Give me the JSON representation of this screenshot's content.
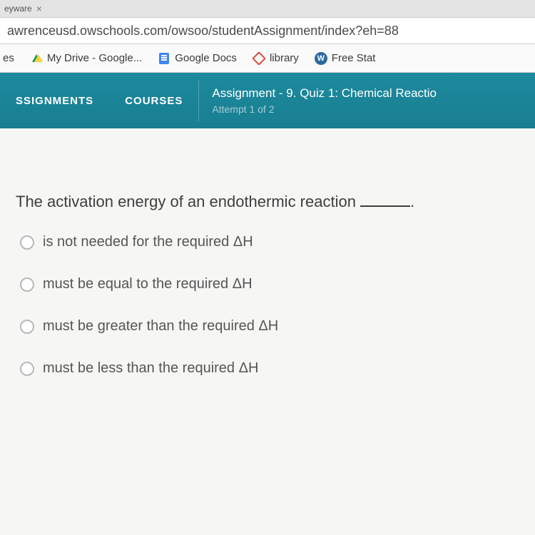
{
  "browser": {
    "tab_fragment": "eyware",
    "url": "awrenceusd.owschools.com/owsoo/studentAssignment/index?eh=88"
  },
  "bookmarks": {
    "item0": "es",
    "drive": "My Drive - Google...",
    "docs": "Google Docs",
    "library": "library",
    "freestat": "Free Stat"
  },
  "nav": {
    "assignments": "SSIGNMENTS",
    "courses": "COURSES",
    "assign_title": "Assignment  - 9. Quiz 1: Chemical Reactio",
    "assign_sub": "Attempt 1 of 2"
  },
  "quiz": {
    "question": "The activation energy of an endothermic reaction",
    "options": {
      "a": "is not needed for the required ΔH",
      "b": "must be equal to the required ΔH",
      "c": "must be greater than the required ΔH",
      "d": "must be less than the required ΔH"
    }
  },
  "colors": {
    "nav_bg": "#1d8a9e",
    "text_main": "#3e3e3e",
    "radio_border": "#b8b8b8"
  }
}
